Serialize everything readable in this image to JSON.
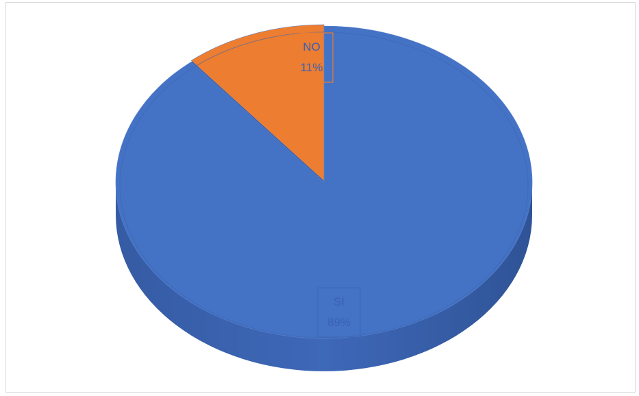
{
  "chart_data": {
    "type": "pie",
    "style": "3d",
    "title": "",
    "slices": [
      {
        "label": "SI",
        "value": 89,
        "display": "89%",
        "color": "#4472c4"
      },
      {
        "label": "NO",
        "value": 11,
        "display": "11%",
        "color": "#ed7d31"
      }
    ],
    "legend": "none"
  },
  "colors": {
    "border": "#d9d9d9",
    "label_text": "#3a62b3"
  }
}
